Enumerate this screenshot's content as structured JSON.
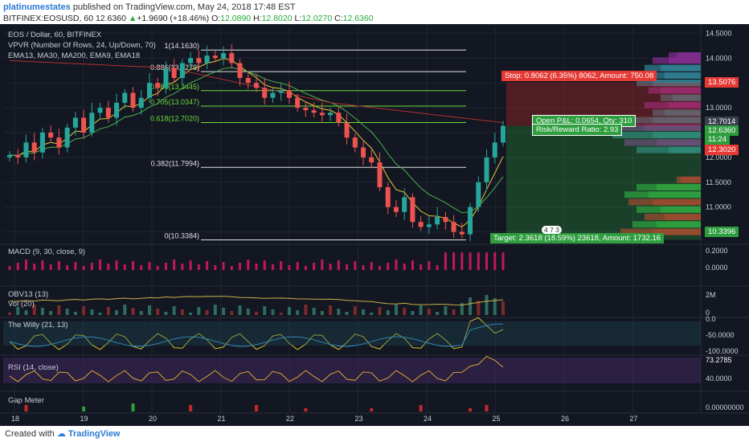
{
  "header": {
    "user": "platinumestates",
    "published": "published on TradingView.com, May 24, 2018 17:48 EST",
    "symbol_line": "BITFINEX:EOSUSD, 60",
    "last": "12.6360",
    "change": "+1.9690 (+18.46%)",
    "o_label": "O:",
    "o": "12.0890",
    "h_label": "H:",
    "h": "12.8020",
    "l_label": "L:",
    "l": "12.0270",
    "c_label": "C:",
    "c": "12.6360"
  },
  "legend": {
    "title": "EOS / Dollar, 60, BITFINEX",
    "vpvr": "VPVR (Number Of Rows, 24, Up/Down, 70)",
    "emas": "EMA13, MA30, MA200, EMA9, EMA18"
  },
  "trade": {
    "stop": "Stop: 0.8062 (6.35%) 8062, Amount: 750.08",
    "pnl": "Open P&L: 0.0654, Qty: 310",
    "rr": "Risk/Reward Ratio: 2.93",
    "target": "Target: 2.3618 (18.59%) 23618, Amount: 1732.16",
    "marker": "4 7 3"
  },
  "price_badges": [
    "13.5076",
    "12.7014",
    "12.6360",
    "11:24",
    "12.3020",
    "10.3396"
  ],
  "panes": {
    "macd": "MACD (9, 30, close, 9)",
    "obv": "OBV13 (13)",
    "vol": "Vol (20)",
    "willy": "The Willy (21, 13)",
    "rsi": "RSI (14, close)",
    "gap": "Gap Meter"
  },
  "footer": {
    "created": "Created with",
    "brand": "TradingView"
  },
  "colors": {
    "up": "#26a69a",
    "down": "#ef5350",
    "bg": "#131722",
    "fib": "#e0e0e0",
    "fib_green": "#6ddc3b"
  },
  "chart_data": {
    "type": "candlestick",
    "title": "EOS / Dollar, 60, BITFINEX",
    "x_ticks": [
      "18",
      "19",
      "20",
      "21",
      "22",
      "23",
      "24",
      "25",
      "26",
      "27"
    ],
    "y_ticks": [
      "14.5000",
      "14.0000",
      "13.5000",
      "13.0000",
      "12.5000",
      "12.0000",
      "11.5000",
      "11.0000",
      "10.5000"
    ],
    "ylim": [
      10.25,
      14.62
    ],
    "fib_levels": [
      {
        "label": "1(14.1630)",
        "value": 14.163
      },
      {
        "label": "0.886(13.7279)",
        "value": 13.7279
      },
      {
        "label": "0.786(13.3445)",
        "value": 13.3445
      },
      {
        "label": "0.705(13.0347)",
        "value": 13.0347
      },
      {
        "label": "0.618(12.7020)",
        "value": 12.702
      },
      {
        "label": "0.382(11.7994)",
        "value": 11.7994
      },
      {
        "label": "0(10.3384)",
        "value": 10.3384
      }
    ],
    "path_close": [
      12.05,
      12.0,
      12.3,
      12.1,
      12.5,
      12.4,
      12.2,
      12.6,
      12.8,
      12.5,
      12.9,
      13.0,
      12.8,
      13.1,
      13.3,
      13.0,
      13.2,
      13.5,
      13.4,
      13.8,
      13.6,
      13.9,
      14.0,
      13.9,
      14.05,
      14.0,
      14.1,
      13.9,
      13.6,
      13.5,
      13.4,
      13.2,
      13.3,
      13.35,
      13.2,
      13.0,
      12.95,
      12.9,
      12.85,
      12.9,
      12.7,
      12.4,
      12.2,
      12.0,
      11.9,
      11.4,
      11.0,
      10.9,
      11.2,
      10.7,
      10.6,
      10.65,
      10.8,
      10.7,
      10.5,
      10.45,
      11.0,
      11.5,
      12.0,
      12.3,
      12.636
    ],
    "macd_ticks": [
      "0.2000",
      "0.0000"
    ],
    "obv_ticks": [
      "2M",
      "0"
    ],
    "willy_ticks": [
      "0.0",
      "-50.0000",
      "-100.0000"
    ],
    "rsi_ticks": [
      "73.2785",
      "40.0000"
    ],
    "gap_ticks": [
      "0.00000000"
    ]
  }
}
